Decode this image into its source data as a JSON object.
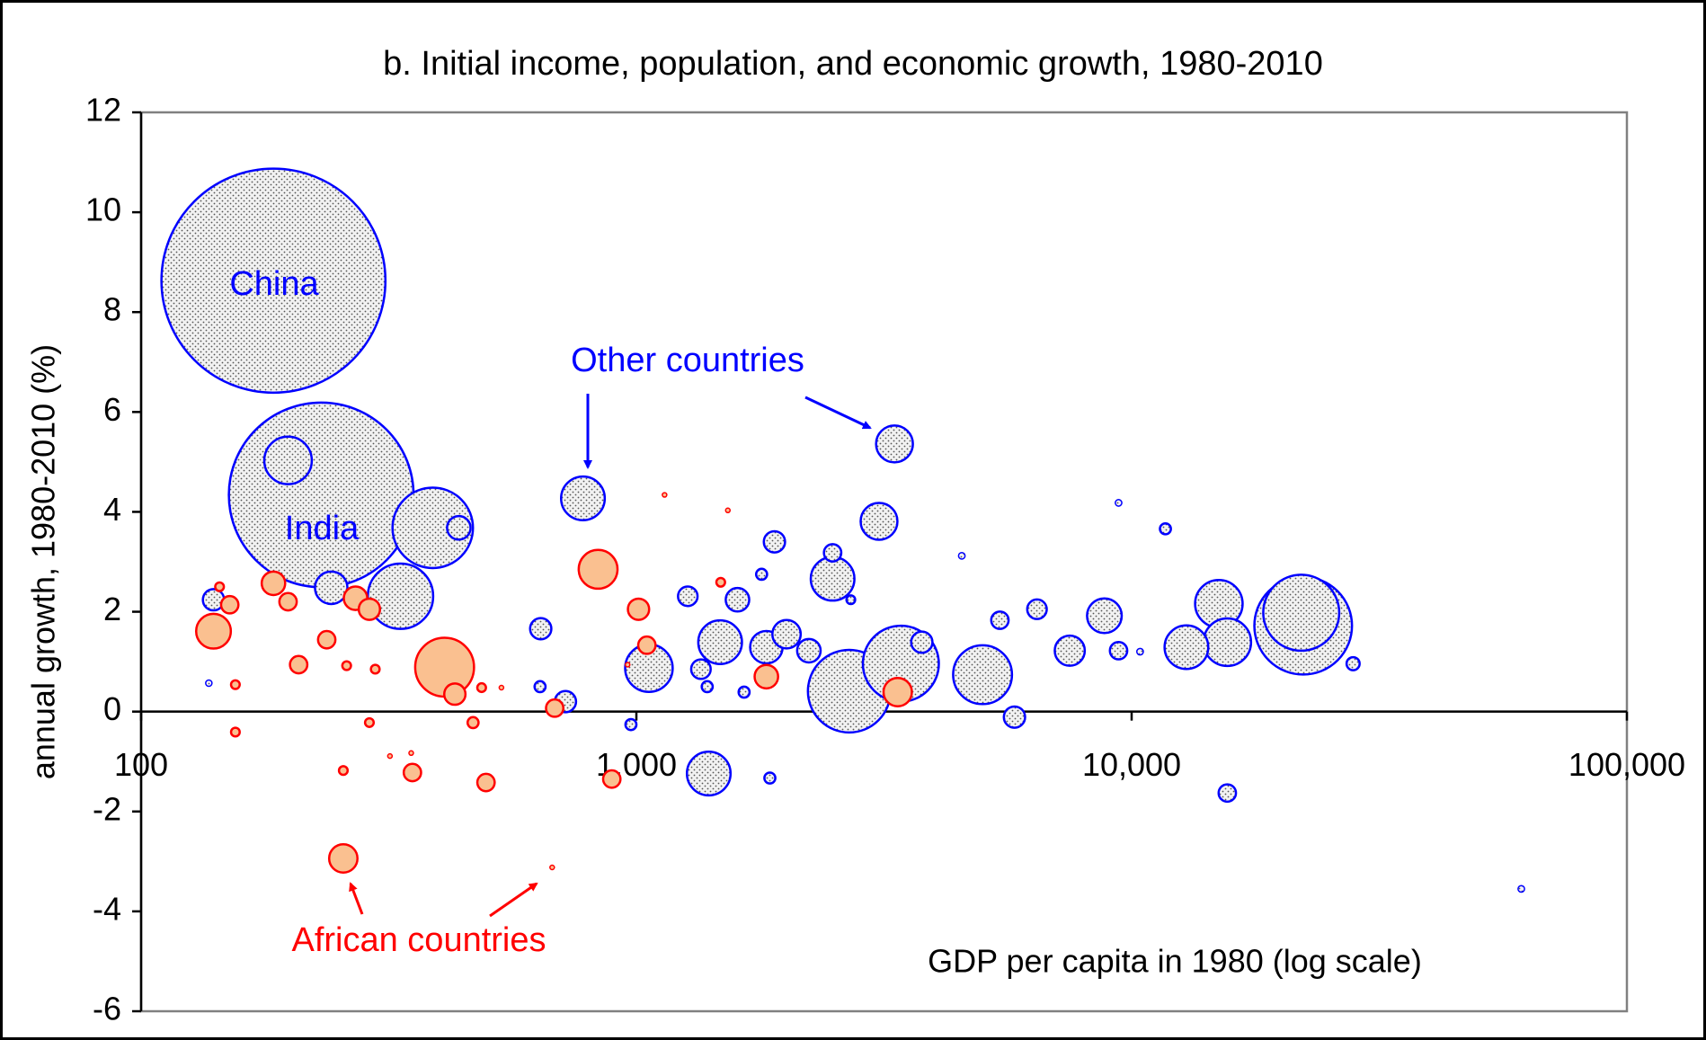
{
  "chart_data": {
    "type": "scatter",
    "title": "b. Initial income, population, and economic growth, 1980-2010",
    "x_label": "GDP per capita in 1980 (log scale)",
    "y_label": "annual growth, 1980-2010 (%)",
    "x_log": true,
    "xlim": [
      100,
      100000
    ],
    "xticks": [
      100,
      {
        "value": 1000,
        "label": "1,000"
      },
      {
        "value": 10000,
        "label": "10,000"
      },
      {
        "value": 100000,
        "label": "100,000"
      }
    ],
    "ylim": [
      -6,
      12
    ],
    "yticks": [
      -6,
      -4,
      -2,
      0,
      2,
      4,
      6,
      8,
      10,
      12
    ],
    "annotations": [
      "China",
      "India",
      "Other countries",
      "African countries"
    ],
    "series": [
      {
        "name": "Other countries",
        "color": "#0000ff",
        "x": [
          185,
          231,
          198,
          388,
          438,
          334,
          242,
          140,
          137,
          780,
          3320,
          3090,
          1900,
          2490,
          2490,
          1270,
          1600,
          1790,
          641,
          1060,
          1476,
          2010,
          1830,
          2230,
          2690,
          3420,
          3770,
          5000,
          6440,
          5420,
          7500,
          8810,
          9410,
          15000,
          12900,
          15600,
          22200,
          22000,
          5800,
          1400,
          15600,
          61200,
          9410,
          11700,
          4540,
          28000,
          10400,
          1860,
          975,
          719,
          639,
          1390,
          1650,
          1350,
          2710
        ],
        "values": [
          8.63,
          4.34,
          5.03,
          3.68,
          3.68,
          2.31,
          2.48,
          2.24,
          0.57,
          4.27,
          5.36,
          3.81,
          3.4,
          2.66,
          3.18,
          2.31,
          2.24,
          2.75,
          1.66,
          0.87,
          1.39,
          1.55,
          1.29,
          1.22,
          0.41,
          0.96,
          1.39,
          0.74,
          2.05,
          1.83,
          1.22,
          1.92,
          1.22,
          2.16,
          1.29,
          1.39,
          1.72,
          1.98,
          -0.11,
          -1.24,
          -1.63,
          -3.55,
          4.18,
          3.66,
          3.12,
          0.96,
          1.2,
          -1.33,
          -0.26,
          0.2,
          0.5,
          0.5,
          0.39,
          0.85,
          2.24
        ],
        "sizes": [
          1000,
          680,
          45,
          129,
          11,
          85,
          21,
          9,
          0.8,
          38,
          27,
          27,
          9,
          38,
          6,
          7.6,
          11,
          2.4,
          9,
          45,
          38,
          16,
          21,
          11,
          136,
          115,
          9,
          69,
          7.6,
          6,
          18,
          24,
          6,
          45,
          38,
          45,
          190,
          115,
          9,
          38,
          6,
          0.85,
          0.85,
          2.4,
          0.85,
          3.4,
          0.85,
          2.4,
          2.4,
          9,
          2.4,
          2.4,
          2.4,
          7.6,
          1.5
        ]
      },
      {
        "name": "African countries",
        "color": "#ff0000",
        "fill": "#fac090",
        "x": [
          140,
          185,
          198,
          151,
          144,
          208,
          237,
          271,
          289,
          410,
          430,
          260,
          297,
          155,
          155,
          289,
          468,
          487,
          534,
          256,
          353,
          497,
          256,
          684,
          837,
          1010,
          1050,
          1830,
          3370,
          892,
          676,
          1140,
          1530,
          1480,
          960,
          351,
          318
        ],
        "values": [
          1.61,
          2.57,
          2.2,
          2.14,
          2.5,
          0.94,
          1.44,
          2.27,
          2.05,
          0.89,
          0.35,
          0.92,
          0.85,
          0.54,
          -0.41,
          -0.22,
          -0.22,
          0.48,
          0.48,
          -1.18,
          -1.22,
          -1.42,
          -2.94,
          0.07,
          2.85,
          2.05,
          1.33,
          0.7,
          0.39,
          -1.35,
          -3.12,
          4.34,
          4.03,
          2.59,
          0.94,
          -0.83,
          -0.89
        ],
        "sizes": [
          24,
          11,
          6,
          6,
          1.5,
          6,
          6,
          11,
          9,
          69,
          9,
          1.5,
          1.5,
          1.5,
          1.5,
          1.5,
          2.4,
          1.5,
          0.4,
          1.5,
          6,
          6,
          16,
          6,
          30,
          9,
          6,
          11,
          16,
          6,
          0.4,
          0.4,
          0.4,
          1.5,
          0.4,
          0.4,
          0.4
        ]
      }
    ]
  }
}
